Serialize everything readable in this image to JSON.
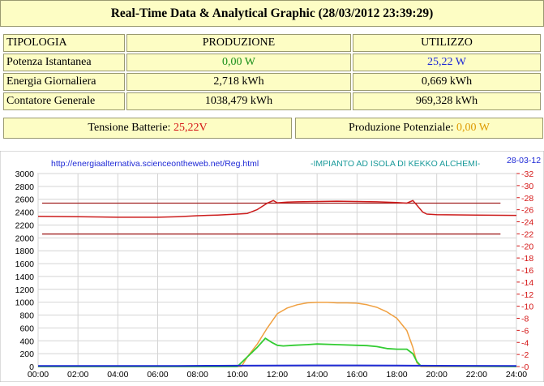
{
  "header": {
    "title": "Real-Time Data & Analytical Graphic (28/03/2012 23:39:29)"
  },
  "table": {
    "headers": [
      "TIPOLOGIA",
      "PRODUZIONE",
      "UTILIZZO"
    ],
    "rows": [
      {
        "label": "Potenza Istantanea",
        "produzione": "0,00 W",
        "utilizzo": "25,22 W"
      },
      {
        "label": "Energia Giornaliera",
        "produzione": "2,718 kWh",
        "utilizzo": "0,669 kWh"
      },
      {
        "label": "Contatore Generale",
        "produzione": "1038,479 kWh",
        "utilizzo": "969,328 kWh"
      }
    ]
  },
  "status": {
    "battery_label": "Tensione Batterie:",
    "battery_value": "25,22V",
    "potential_label": "Produzione Potenziale:",
    "potential_value": "0,00 W"
  },
  "colors": {
    "panel_bg": "#fdfdc4",
    "green": "#1a8f1a",
    "blue": "#1f2ad6",
    "red": "#d41414",
    "orange": "#dd9a00",
    "battery_line": "#cc1c1c",
    "production_line": "#f0a040",
    "usage_line": "#33cc33",
    "threshold_line": "#a02020"
  },
  "chart_data": {
    "type": "line",
    "url_text": "http://energiaalternativa.scienceontheweb.net/Reg.html",
    "plant_text": "-IMPIANTO AD ISOLA DI KEKKO ALCHEMI-",
    "date_text": "28-03-12",
    "x_ticks": [
      "00:00",
      "02:00",
      "04:00",
      "06:00",
      "08:00",
      "10:00",
      "12:00",
      "14:00",
      "16:00",
      "18:00",
      "20:00",
      "22:00",
      "24:00"
    ],
    "xlim": [
      0,
      24
    ],
    "y_left_ticks": [
      "0",
      "200",
      "400",
      "600",
      "800",
      "1000",
      "1200",
      "1400",
      "1600",
      "1800",
      "2000",
      "2200",
      "2400",
      "2600",
      "2800",
      "3000"
    ],
    "ylim_left": [
      0,
      3000
    ],
    "y_right_ticks": [
      "0",
      "2",
      "4",
      "6",
      "8",
      "10",
      "12",
      "14",
      "16",
      "18",
      "20",
      "22",
      "24",
      "26",
      "28",
      "30",
      "32"
    ],
    "ylim_right": [
      0,
      32
    ],
    "grid": true,
    "thresholds_left": [
      2540,
      2060
    ],
    "series": [
      {
        "axis": "left",
        "x": [
          0,
          2,
          4,
          6,
          7,
          8,
          9,
          10,
          10.5,
          11,
          11.5,
          11.8,
          12,
          12.5,
          13,
          14,
          15,
          16,
          17,
          18,
          18.5,
          18.8,
          19,
          19.3,
          19.5,
          20,
          22,
          24
        ],
        "y": [
          2335,
          2330,
          2320,
          2320,
          2330,
          2345,
          2355,
          2370,
          2380,
          2440,
          2540,
          2580,
          2545,
          2555,
          2560,
          2565,
          2570,
          2565,
          2560,
          2550,
          2540,
          2580,
          2510,
          2400,
          2370,
          2360,
          2355,
          2350
        ]
      },
      {
        "axis": "left",
        "x": [
          0,
          10.2,
          10.5,
          11,
          11.5,
          12,
          12.5,
          13,
          13.5,
          14,
          14.5,
          15,
          15.5,
          16,
          16.5,
          17,
          17.5,
          18,
          18.5,
          18.8,
          19,
          19.2,
          24
        ],
        "y": [
          0,
          0,
          150,
          350,
          600,
          820,
          910,
          960,
          990,
          1000,
          1000,
          990,
          990,
          985,
          960,
          920,
          850,
          750,
          560,
          300,
          60,
          0,
          0
        ]
      },
      {
        "axis": "left",
        "x": [
          0,
          10,
          10.5,
          11,
          11.4,
          11.7,
          12,
          12.3,
          12.8,
          13.5,
          14,
          15,
          16,
          16.5,
          17,
          17.5,
          18,
          18.5,
          18.8,
          19,
          19.2,
          24
        ],
        "y": [
          0,
          0,
          150,
          300,
          440,
          380,
          330,
          320,
          330,
          340,
          350,
          340,
          330,
          325,
          310,
          280,
          270,
          270,
          200,
          80,
          10,
          0
        ]
      },
      {
        "axis": "left",
        "x": [
          0,
          7,
          9,
          10,
          12,
          14,
          16,
          18,
          19,
          20,
          24
        ],
        "y": [
          10,
          10,
          12,
          14,
          16,
          18,
          18,
          16,
          14,
          12,
          10
        ]
      }
    ]
  }
}
